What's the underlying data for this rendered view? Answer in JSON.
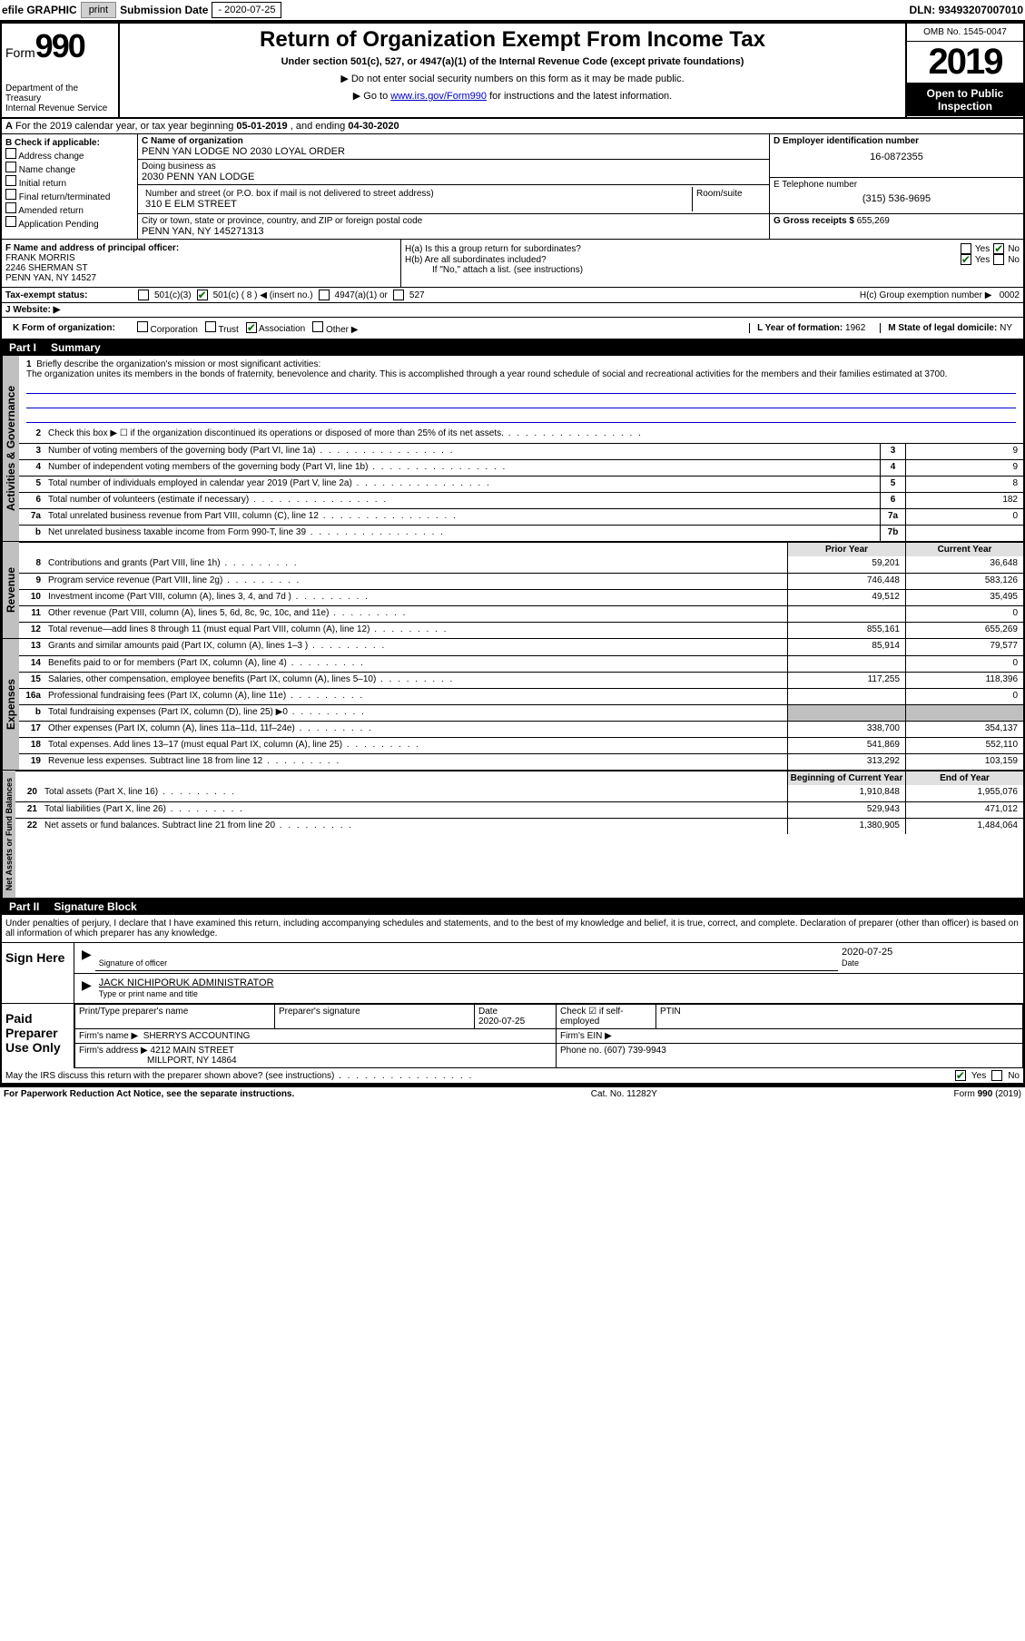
{
  "topbar": {
    "efile_label": "efile GRAPHIC",
    "print_btn": "print",
    "submission_label": "Submission Date",
    "submission_date": "- 2020-07-25",
    "dln_label": "DLN:",
    "dln": "93493207007010"
  },
  "header": {
    "form_word": "Form",
    "form_num": "990",
    "dept": "Department of the Treasury\nInternal Revenue Service",
    "title": "Return of Organization Exempt From Income Tax",
    "subtitle": "Under section 501(c), 527, or 4947(a)(1) of the Internal Revenue Code (except private foundations)",
    "note1": "▶ Do not enter social security numbers on this form as it may be made public.",
    "note2_pre": "▶ Go to ",
    "note2_link": "www.irs.gov/Form990",
    "note2_post": " for instructions and the latest information.",
    "omb": "OMB No. 1545-0047",
    "year": "2019",
    "inspection": "Open to Public Inspection"
  },
  "row_a": {
    "text_pre": "For the 2019 calendar year, or tax year beginning ",
    "begin": "05-01-2019",
    "mid": " , and ending ",
    "end": "04-30-2020"
  },
  "box_b": {
    "heading": "B Check if applicable:",
    "opts": [
      "Address change",
      "Name change",
      "Initial return",
      "Final return/terminated",
      "Amended return",
      "Application Pending"
    ]
  },
  "box_c": {
    "name_label": "C Name of organization",
    "name": "PENN YAN LODGE NO 2030 LOYAL ORDER",
    "dba_label": "Doing business as",
    "dba": "2030 PENN YAN LODGE",
    "street_label": "Number and street (or P.O. box if mail is not delivered to street address)",
    "room_label": "Room/suite",
    "street": "310 E ELM STREET",
    "city_label": "City or town, state or province, country, and ZIP or foreign postal code",
    "city": "PENN YAN, NY  145271313"
  },
  "box_d": {
    "label": "D Employer identification number",
    "val": "16-0872355"
  },
  "box_e": {
    "label": "E Telephone number",
    "val": "(315) 536-9695"
  },
  "box_g": {
    "label": "G Gross receipts $",
    "val": "655,269"
  },
  "box_f": {
    "label": "F  Name and address of principal officer:",
    "name": "FRANK MORRIS",
    "addr1": "2246 SHERMAN ST",
    "addr2": "PENN YAN, NY  14527"
  },
  "box_h": {
    "ha": "H(a)  Is this a group return for subordinates?",
    "hb": "H(b)  Are all subordinates included?",
    "hb_note": "If \"No,\" attach a list. (see instructions)",
    "hc": "H(c)  Group exemption number ▶",
    "hc_val": "0002",
    "yes": "Yes",
    "no": "No"
  },
  "tax_exempt": {
    "label": "Tax-exempt status:",
    "o1": "501(c)(3)",
    "o2": "501(c) ( 8 ) ◀ (insert no.)",
    "o3": "4947(a)(1) or",
    "o4": "527"
  },
  "website": {
    "label": "J   Website: ▶"
  },
  "row_k": {
    "k": "K Form of organization:",
    "opts": [
      "Corporation",
      "Trust",
      "Association",
      "Other ▶"
    ],
    "checked": 2,
    "l": "L Year of formation:",
    "l_val": "1962",
    "m": "M State of legal domicile:",
    "m_val": "NY"
  },
  "part1": {
    "label": "Part I",
    "title": "Summary"
  },
  "mission": {
    "num": "1",
    "label": "Briefly describe the organization's mission or most significant activities:",
    "text": "The organization unites its members in the bonds of fraternity, benevolence and charity. This is accomplished through a year round schedule of social and recreational activities for the members and their families estimated at 3700."
  },
  "lines_gov": [
    {
      "n": "2",
      "t": "Check this box ▶ ☐  if the organization discontinued its operations or disposed of more than 25% of its net assets.",
      "box": "",
      "v": ""
    },
    {
      "n": "3",
      "t": "Number of voting members of the governing body (Part VI, line 1a)",
      "box": "3",
      "v": "9"
    },
    {
      "n": "4",
      "t": "Number of independent voting members of the governing body (Part VI, line 1b)",
      "box": "4",
      "v": "9"
    },
    {
      "n": "5",
      "t": "Total number of individuals employed in calendar year 2019 (Part V, line 2a)",
      "box": "5",
      "v": "8"
    },
    {
      "n": "6",
      "t": "Total number of volunteers (estimate if necessary)",
      "box": "6",
      "v": "182"
    },
    {
      "n": "7a",
      "t": "Total unrelated business revenue from Part VIII, column (C), line 12",
      "box": "7a",
      "v": "0"
    },
    {
      "n": "b",
      "t": "Net unrelated business taxable income from Form 990-T, line 39",
      "box": "7b",
      "v": ""
    }
  ],
  "col_headers": {
    "prior": "Prior Year",
    "current": "Current Year"
  },
  "lines_rev": [
    {
      "n": "8",
      "t": "Contributions and grants (Part VIII, line 1h)",
      "p": "59,201",
      "c": "36,648"
    },
    {
      "n": "9",
      "t": "Program service revenue (Part VIII, line 2g)",
      "p": "746,448",
      "c": "583,126"
    },
    {
      "n": "10",
      "t": "Investment income (Part VIII, column (A), lines 3, 4, and 7d )",
      "p": "49,512",
      "c": "35,495"
    },
    {
      "n": "11",
      "t": "Other revenue (Part VIII, column (A), lines 5, 6d, 8c, 9c, 10c, and 11e)",
      "p": "",
      "c": "0"
    },
    {
      "n": "12",
      "t": "Total revenue—add lines 8 through 11 (must equal Part VIII, column (A), line 12)",
      "p": "855,161",
      "c": "655,269"
    }
  ],
  "lines_exp": [
    {
      "n": "13",
      "t": "Grants and similar amounts paid (Part IX, column (A), lines 1–3 )",
      "p": "85,914",
      "c": "79,577"
    },
    {
      "n": "14",
      "t": "Benefits paid to or for members (Part IX, column (A), line 4)",
      "p": "",
      "c": "0"
    },
    {
      "n": "15",
      "t": "Salaries, other compensation, employee benefits (Part IX, column (A), lines 5–10)",
      "p": "117,255",
      "c": "118,396"
    },
    {
      "n": "16a",
      "t": "Professional fundraising fees (Part IX, column (A), line 11e)",
      "p": "",
      "c": "0"
    },
    {
      "n": "b",
      "t": "Total fundraising expenses (Part IX, column (D), line 25) ▶0",
      "p": "__SHADE__",
      "c": "__SHADE__"
    },
    {
      "n": "17",
      "t": "Other expenses (Part IX, column (A), lines 11a–11d, 11f–24e)",
      "p": "338,700",
      "c": "354,137"
    },
    {
      "n": "18",
      "t": "Total expenses. Add lines 13–17 (must equal Part IX, column (A), line 25)",
      "p": "541,869",
      "c": "552,110"
    },
    {
      "n": "19",
      "t": "Revenue less expenses. Subtract line 18 from line 12",
      "p": "313,292",
      "c": "103,159"
    }
  ],
  "col_headers2": {
    "prior": "Beginning of Current Year",
    "current": "End of Year"
  },
  "lines_net": [
    {
      "n": "20",
      "t": "Total assets (Part X, line 16)",
      "p": "1,910,848",
      "c": "1,955,076"
    },
    {
      "n": "21",
      "t": "Total liabilities (Part X, line 26)",
      "p": "529,943",
      "c": "471,012"
    },
    {
      "n": "22",
      "t": "Net assets or fund balances. Subtract line 21 from line 20",
      "p": "1,380,905",
      "c": "1,484,064"
    }
  ],
  "side_labels": [
    "Activities & Governance",
    "Revenue",
    "Expenses",
    "Net Assets or Fund Balances"
  ],
  "part2": {
    "label": "Part II",
    "title": "Signature Block"
  },
  "sig_disclaimer": "Under penalties of perjury, I declare that I have examined this return, including accompanying schedules and statements, and to the best of my knowledge and belief, it is true, correct, and complete. Declaration of preparer (other than officer) is based on all information of which preparer has any knowledge.",
  "sign_here": {
    "label": "Sign Here",
    "sig_label": "Signature of officer",
    "date_label": "Date",
    "date": "2020-07-25",
    "name": "JACK NICHIPORUK  ADMINISTRATOR",
    "name_label": "Type or print name and title"
  },
  "paid_prep": {
    "label": "Paid Preparer Use Only",
    "h1": "Print/Type preparer's name",
    "h2": "Preparer's signature",
    "h3": "Date",
    "h3v": "2020-07-25",
    "h4": "Check ☑ if self-employed",
    "h5": "PTIN",
    "firm_label": "Firm's name    ▶",
    "firm": "SHERRYS ACCOUNTING",
    "ein_label": "Firm's EIN ▶",
    "addr_label": "Firm's address ▶",
    "addr1": "4212 MAIN STREET",
    "addr2": "MILLPORT, NY  14864",
    "phone_label": "Phone no.",
    "phone": "(607) 739-9943"
  },
  "irs_discuss": {
    "q": "May the IRS discuss this return with the preparer shown above? (see instructions)",
    "yes": "Yes",
    "no": "No"
  },
  "footer": {
    "left": "For Paperwork Reduction Act Notice, see the separate instructions.",
    "mid": "Cat. No. 11282Y",
    "right": "Form 990 (2019)"
  }
}
